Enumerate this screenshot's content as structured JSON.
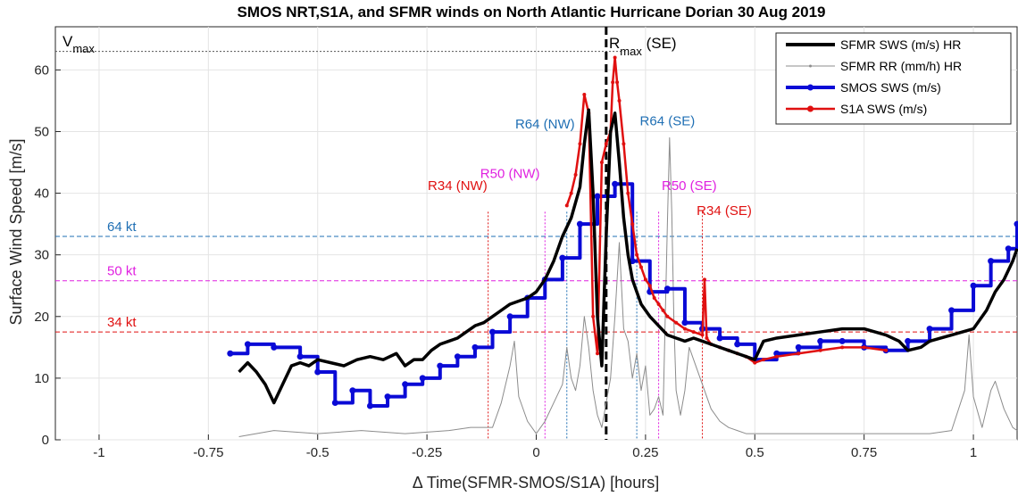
{
  "chart_data": {
    "type": "line",
    "title": "SMOS NRT,S1A, and SFMR winds on North Atlantic Hurricane Dorian 30 Aug 2019",
    "xlabel": "Δ Time(SFMR-SMOS/S1A) [hours]",
    "ylabel": "Surface Wind Speed [m/s]",
    "xlim": [
      -1.1,
      1.1
    ],
    "ylim": [
      0,
      67
    ],
    "xticks": [
      -1,
      -0.75,
      -0.5,
      -0.25,
      0,
      0.25,
      0.5,
      0.75,
      1
    ],
    "xtick_labels": [
      "-1",
      "-0.75",
      "-0.5",
      "-0.25",
      "0",
      "0.25",
      "0.5",
      "0.75",
      "1"
    ],
    "yticks": [
      0,
      10,
      20,
      30,
      40,
      50,
      60
    ],
    "ytick_labels": [
      "0",
      "10",
      "20",
      "30",
      "40",
      "50",
      "60"
    ],
    "grid": true,
    "legend_position": "top-right",
    "legend": [
      {
        "label": "SFMR SWS (m/s) HR",
        "color": "#000000"
      },
      {
        "label": "SFMR RR (mm/h) HR",
        "color": "#8c8c8c"
      },
      {
        "label": "SMOS SWS (m/s)",
        "color": "#0a0ad6"
      },
      {
        "label": "S1A SWS (m/s)",
        "color": "#e01010"
      }
    ],
    "series": [
      {
        "name": "SFMR SWS (m/s) HR",
        "color": "#000000",
        "x": [
          -0.68,
          -0.66,
          -0.64,
          -0.62,
          -0.6,
          -0.58,
          -0.56,
          -0.54,
          -0.52,
          -0.5,
          -0.47,
          -0.44,
          -0.41,
          -0.38,
          -0.35,
          -0.32,
          -0.3,
          -0.28,
          -0.26,
          -0.24,
          -0.22,
          -0.2,
          -0.18,
          -0.16,
          -0.14,
          -0.12,
          -0.1,
          -0.08,
          -0.06,
          -0.04,
          -0.02,
          0.0,
          0.02,
          0.04,
          0.06,
          0.08,
          0.1,
          0.11,
          0.12,
          0.13,
          0.14,
          0.15,
          0.16,
          0.17,
          0.18,
          0.19,
          0.2,
          0.21,
          0.22,
          0.23,
          0.24,
          0.26,
          0.28,
          0.3,
          0.32,
          0.34,
          0.36,
          0.38,
          0.4,
          0.42,
          0.44,
          0.46,
          0.48,
          0.5,
          0.52,
          0.55,
          0.6,
          0.65,
          0.7,
          0.75,
          0.8,
          0.83,
          0.85,
          0.88,
          0.9,
          0.95,
          1.0,
          1.03,
          1.05,
          1.07,
          1.09,
          1.1
        ],
        "y": [
          11,
          12.5,
          11,
          9,
          6,
          9,
          12,
          12.5,
          12,
          13,
          12.5,
          12,
          13,
          13.5,
          13,
          14,
          12,
          13,
          13,
          14.5,
          15.5,
          16,
          16.5,
          17.5,
          18.5,
          19,
          20,
          21,
          22,
          22.5,
          23,
          24,
          26,
          29,
          33,
          36,
          41,
          48,
          53.5,
          40,
          20,
          12,
          33,
          50,
          53,
          45,
          36,
          30,
          26,
          24,
          22,
          20,
          18.5,
          17,
          16.5,
          16,
          16.5,
          16,
          15.5,
          15,
          14.5,
          14,
          13.5,
          13,
          16,
          16.5,
          17,
          17.5,
          18,
          18,
          17,
          16,
          14.5,
          15,
          16,
          17,
          18,
          21,
          24,
          26,
          29,
          31
        ]
      },
      {
        "name": "SFMR RR (mm/h) HR",
        "color": "#8c8c8c",
        "x": [
          -0.68,
          -0.6,
          -0.5,
          -0.4,
          -0.3,
          -0.2,
          -0.15,
          -0.1,
          -0.08,
          -0.06,
          -0.05,
          -0.04,
          -0.02,
          0.0,
          0.02,
          0.04,
          0.06,
          0.07,
          0.08,
          0.09,
          0.1,
          0.11,
          0.12,
          0.13,
          0.14,
          0.15,
          0.16,
          0.17,
          0.18,
          0.19,
          0.2,
          0.21,
          0.22,
          0.23,
          0.24,
          0.25,
          0.26,
          0.27,
          0.28,
          0.29,
          0.3,
          0.305,
          0.31,
          0.315,
          0.32,
          0.33,
          0.34,
          0.35,
          0.36,
          0.38,
          0.4,
          0.42,
          0.44,
          0.46,
          0.48,
          0.5,
          0.6,
          0.7,
          0.8,
          0.9,
          0.95,
          0.98,
          0.99,
          1.0,
          1.02,
          1.04,
          1.05,
          1.07,
          1.09,
          1.1
        ],
        "y": [
          0.5,
          1.5,
          1,
          1.5,
          1,
          1.5,
          2,
          2,
          6,
          12,
          16,
          7,
          3,
          1,
          3,
          6,
          9,
          15,
          10,
          8,
          12,
          20,
          15,
          8,
          4,
          2,
          6,
          10,
          20,
          32,
          18,
          16,
          10,
          14,
          8,
          12,
          4,
          5,
          7,
          4,
          35,
          49,
          37,
          19,
          8,
          4,
          8,
          15,
          13,
          9,
          5,
          3,
          2,
          1.5,
          1,
          1,
          1,
          1,
          1,
          1,
          1.5,
          8,
          17,
          7,
          2,
          8,
          9.5,
          5,
          2,
          1.5
        ]
      },
      {
        "name": "SMOS SWS (m/s)",
        "color": "#0a0ad6",
        "x": [
          -0.7,
          -0.66,
          -0.6,
          -0.54,
          -0.5,
          -0.46,
          -0.42,
          -0.38,
          -0.34,
          -0.3,
          -0.26,
          -0.22,
          -0.18,
          -0.14,
          -0.1,
          -0.06,
          -0.02,
          0.02,
          0.06,
          0.1,
          0.14,
          0.18,
          0.22,
          0.26,
          0.3,
          0.34,
          0.38,
          0.42,
          0.46,
          0.5,
          0.55,
          0.6,
          0.65,
          0.7,
          0.75,
          0.8,
          0.85,
          0.9,
          0.95,
          1.0,
          1.04,
          1.08,
          1.1
        ],
        "y": [
          14,
          15.5,
          15,
          13.5,
          11,
          6,
          8,
          5.5,
          7,
          9,
          10,
          12,
          13.5,
          15,
          17.5,
          20,
          23,
          26,
          29.5,
          35,
          39.5,
          41.5,
          29,
          24,
          24.5,
          19,
          18,
          16.5,
          15.5,
          13,
          14,
          15,
          16,
          16,
          15,
          14.5,
          16,
          18,
          21,
          25,
          29,
          31,
          35
        ]
      },
      {
        "name": "S1A SWS (m/s)",
        "color": "#e01010",
        "x": [
          0.07,
          0.08,
          0.09,
          0.1,
          0.11,
          0.12,
          0.13,
          0.14,
          0.15,
          0.16,
          0.17,
          0.175,
          0.18,
          0.185,
          0.19,
          0.2,
          0.21,
          0.22,
          0.23,
          0.24,
          0.25,
          0.26,
          0.27,
          0.28,
          0.29,
          0.3,
          0.32,
          0.34,
          0.36,
          0.38,
          0.385,
          0.39,
          0.4,
          0.42,
          0.44,
          0.46,
          0.48,
          0.5,
          0.52,
          0.55,
          0.6,
          0.65,
          0.7,
          0.75,
          0.8
        ],
        "y": [
          38,
          40,
          43,
          48,
          56,
          53,
          20,
          14,
          45,
          48,
          50,
          58,
          62,
          58,
          55,
          48,
          40,
          35,
          30,
          28,
          26,
          25,
          23,
          22,
          21,
          20,
          19,
          18,
          17.5,
          17,
          26,
          16.5,
          15.5,
          15,
          14.5,
          14,
          13.5,
          12.5,
          13,
          13.5,
          14,
          14.5,
          15,
          15,
          14.5
        ]
      }
    ],
    "reference_lines": [
      {
        "label": "64 kt",
        "y": 33,
        "color": "#1f6fb4"
      },
      {
        "label": "50 kt",
        "y": 25.8,
        "color": "#e020e0"
      },
      {
        "label": "34 kt",
        "y": 17.5,
        "color": "#e01010"
      },
      {
        "label": "Vmax",
        "y": 63,
        "color": "#555555"
      }
    ],
    "radius_markers": [
      {
        "label": "R34 (NW)",
        "x": -0.11,
        "color": "#e01010"
      },
      {
        "label": "R50 (NW)",
        "x": 0.02,
        "color": "#e020e0"
      },
      {
        "label": "R64 (NW)",
        "x": 0.07,
        "color": "#1f6fb4"
      },
      {
        "label": "Rmax (SE)",
        "x": 0.16,
        "color": "#000000"
      },
      {
        "label": "R64 (SE)",
        "x": 0.23,
        "color": "#1f6fb4"
      },
      {
        "label": "R50 (SE)",
        "x": 0.28,
        "color": "#e020e0"
      },
      {
        "label": "R34 (SE)",
        "x": 0.38,
        "color": "#e01010"
      }
    ],
    "annotations": {
      "vmax_main": "V",
      "vmax_sub": "max",
      "rmax_main": "R",
      "rmax_sub": "max",
      "rmax_suffix": " (SE)"
    }
  }
}
